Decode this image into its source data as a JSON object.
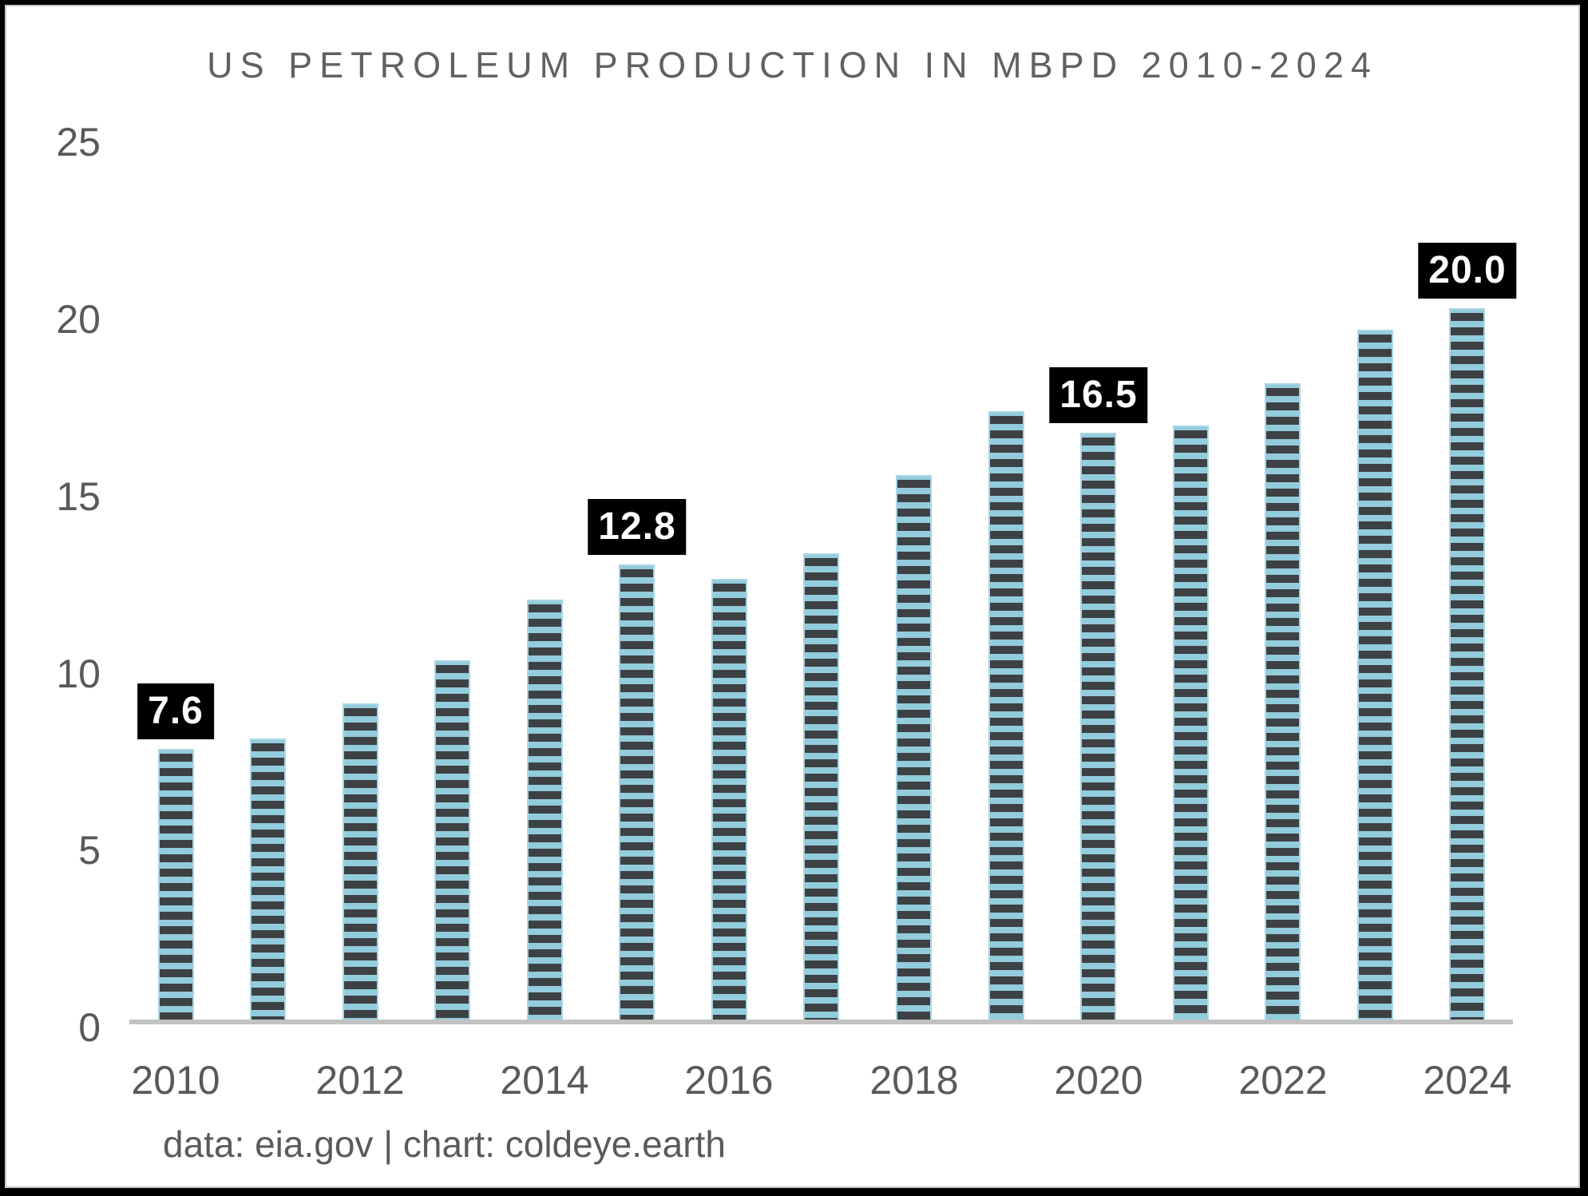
{
  "chart_data": {
    "type": "bar",
    "title": "US PETROLEUM PRODUCTION IN MBPD 2010-2024",
    "categories": [
      2010,
      2011,
      2012,
      2013,
      2014,
      2015,
      2016,
      2017,
      2018,
      2019,
      2020,
      2021,
      2022,
      2023,
      2024
    ],
    "values": [
      7.6,
      7.9,
      8.9,
      10.1,
      11.8,
      12.8,
      12.4,
      13.1,
      15.3,
      17.1,
      16.5,
      16.7,
      17.9,
      19.4,
      20.0
    ],
    "data_labels": [
      {
        "year": 2010,
        "text": "7.6"
      },
      {
        "year": 2015,
        "text": "12.8"
      },
      {
        "year": 2020,
        "text": "16.5"
      },
      {
        "year": 2024,
        "text": "20.0"
      }
    ],
    "xlabel": "",
    "ylabel": "",
    "ylim": [
      0,
      25
    ],
    "yticks": [
      0,
      5,
      10,
      15,
      20,
      25
    ],
    "xticks": [
      2010,
      2012,
      2014,
      2016,
      2018,
      2020,
      2022,
      2024
    ],
    "grid": false,
    "legend": "none",
    "bar_style": {
      "stripe_light": "#93ccdc",
      "stripe_dark": "#3e4144",
      "outline": "#a9d6e3"
    },
    "label_box": {
      "background": "#000000",
      "text_color": "#ffffff"
    },
    "axis_line_color": "#c2c2c2",
    "text_color": "#595959"
  },
  "footer_credit": "data: eia.gov | chart: coldeye.earth"
}
